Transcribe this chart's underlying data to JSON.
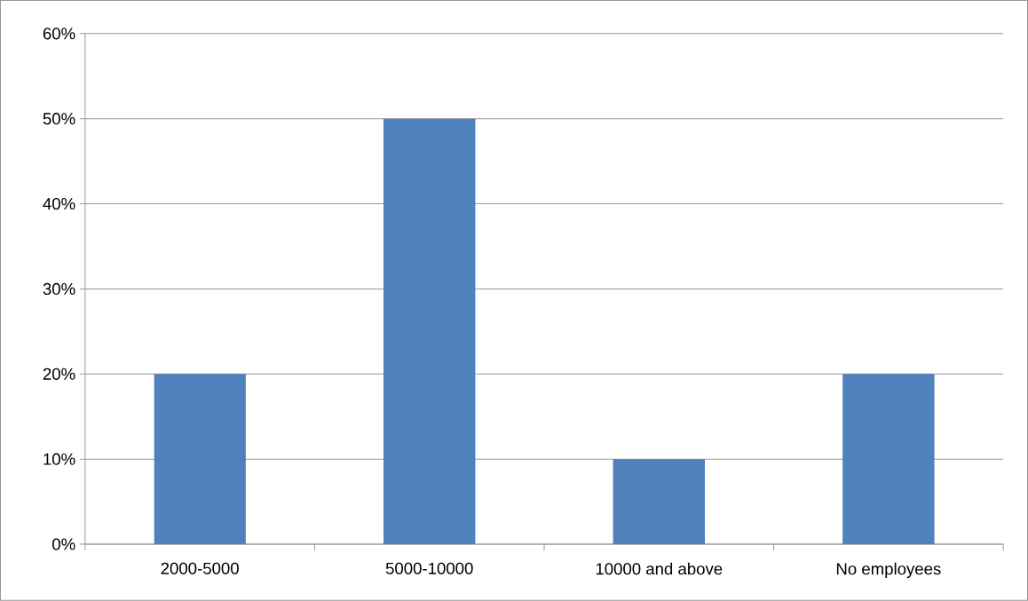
{
  "chart_data": {
    "type": "bar",
    "categories": [
      "2000-5000",
      "5000-10000",
      "10000 and above",
      "No employees"
    ],
    "values": [
      20,
      50,
      10,
      20
    ],
    "color": "#4f81bd",
    "ylim": [
      0,
      60
    ],
    "yticks": [
      {
        "value": 0,
        "label": "0%"
      },
      {
        "value": 10,
        "label": "10%"
      },
      {
        "value": 20,
        "label": "20%"
      },
      {
        "value": 30,
        "label": "30%"
      },
      {
        "value": 40,
        "label": "40%"
      },
      {
        "value": 50,
        "label": "50%"
      },
      {
        "value": 60,
        "label": "60%"
      }
    ],
    "grid": "y"
  }
}
